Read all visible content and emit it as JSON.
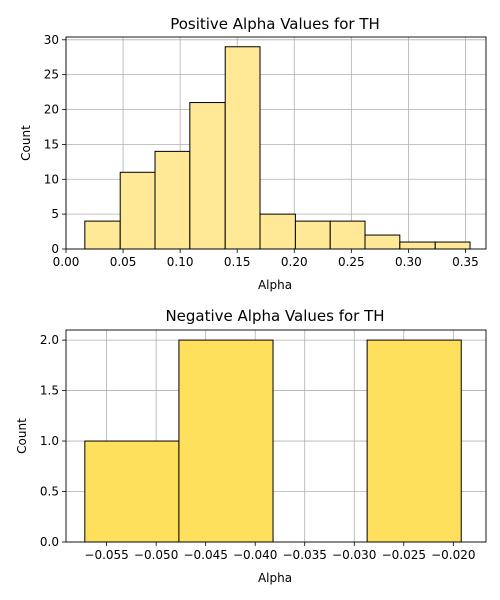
{
  "chart_data": [
    {
      "type": "bar",
      "title": "Positive Alpha Values for TH",
      "xlabel": "Alpha",
      "ylabel": "Count",
      "bar_color": "#ffe896",
      "edge_color": "#000000",
      "grid": true,
      "xlim": [
        0.0,
        0.368
      ],
      "ylim": [
        0,
        30.4
      ],
      "xticks": [
        0.0,
        0.05,
        0.1,
        0.15,
        0.2,
        0.25,
        0.3,
        0.35
      ],
      "xtick_labels": [
        "0.00",
        "0.05",
        "0.10",
        "0.15",
        "0.20",
        "0.25",
        "0.30",
        "0.35"
      ],
      "yticks": [
        0,
        5,
        10,
        15,
        20,
        25,
        30
      ],
      "ytick_labels": [
        "0",
        "5",
        "10",
        "15",
        "20",
        "25",
        "30"
      ],
      "bins": [
        {
          "x0": 0.0165,
          "x1": 0.0475,
          "value": 4
        },
        {
          "x0": 0.0475,
          "x1": 0.078,
          "value": 11
        },
        {
          "x0": 0.078,
          "x1": 0.1085,
          "value": 14
        },
        {
          "x0": 0.1085,
          "x1": 0.1395,
          "value": 21
        },
        {
          "x0": 0.1395,
          "x1": 0.17,
          "value": 29
        },
        {
          "x0": 0.17,
          "x1": 0.201,
          "value": 5
        },
        {
          "x0": 0.201,
          "x1": 0.2315,
          "value": 4
        },
        {
          "x0": 0.2315,
          "x1": 0.262,
          "value": 4
        },
        {
          "x0": 0.262,
          "x1": 0.2925,
          "value": 2
        },
        {
          "x0": 0.2925,
          "x1": 0.3235,
          "value": 1
        },
        {
          "x0": 0.3235,
          "x1": 0.354,
          "value": 1
        }
      ]
    },
    {
      "type": "bar",
      "title": "Negative Alpha Values for TH",
      "xlabel": "Alpha",
      "ylabel": "Count",
      "bar_color": "#ffe05c",
      "edge_color": "#000000",
      "grid": true,
      "xlim": [
        -0.0591,
        -0.0167
      ],
      "ylim": [
        0,
        2.1
      ],
      "xticks": [
        -0.055,
        -0.05,
        -0.045,
        -0.04,
        -0.035,
        -0.03,
        -0.025,
        -0.02
      ],
      "xtick_labels": [
        "−0.055",
        "−0.050",
        "−0.045",
        "−0.040",
        "−0.035",
        "−0.030",
        "−0.025",
        "−0.020"
      ],
      "yticks": [
        0,
        0.5,
        1.0,
        1.5,
        2.0
      ],
      "ytick_labels": [
        "0.0",
        "0.5",
        "1.0",
        "1.5",
        "2.0"
      ],
      "bins": [
        {
          "x0": -0.0572,
          "x1": -0.0477,
          "value": 1
        },
        {
          "x0": -0.0477,
          "x1": -0.0382,
          "value": 2
        },
        {
          "x0": -0.0382,
          "x1": -0.0287,
          "value": 0
        },
        {
          "x0": -0.0287,
          "x1": -0.0192,
          "value": 2
        }
      ]
    }
  ]
}
